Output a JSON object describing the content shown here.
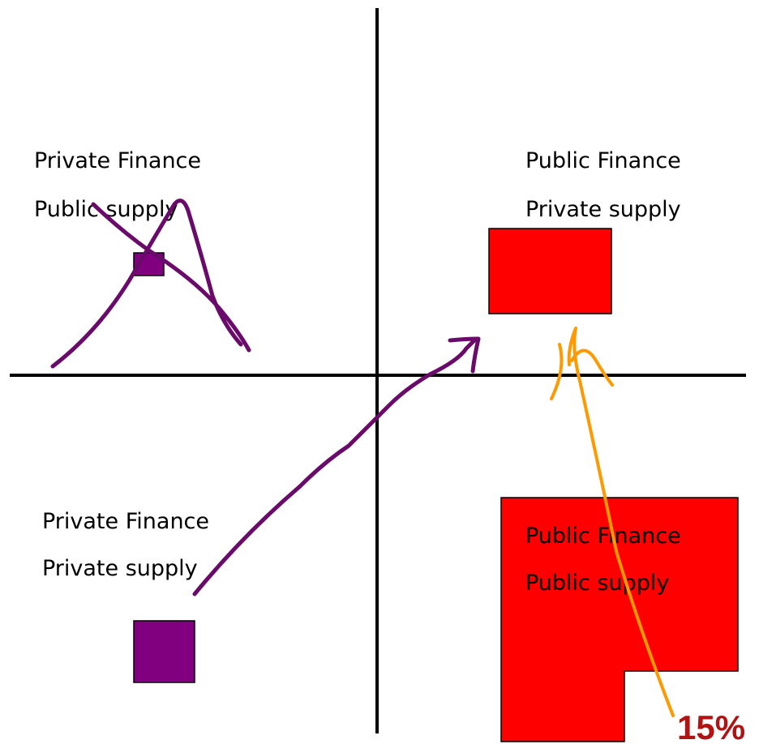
{
  "quadrants": [
    {
      "lines": [
        "Private Finance",
        "Public supply"
      ]
    },
    {
      "lines": [
        "Public Finance",
        "Private supply"
      ]
    },
    {
      "lines": [
        "Private Finance",
        "Private supply"
      ]
    },
    {
      "lines": [
        "Public Finance",
        "Public supply"
      ]
    }
  ],
  "annotation": "15%"
}
